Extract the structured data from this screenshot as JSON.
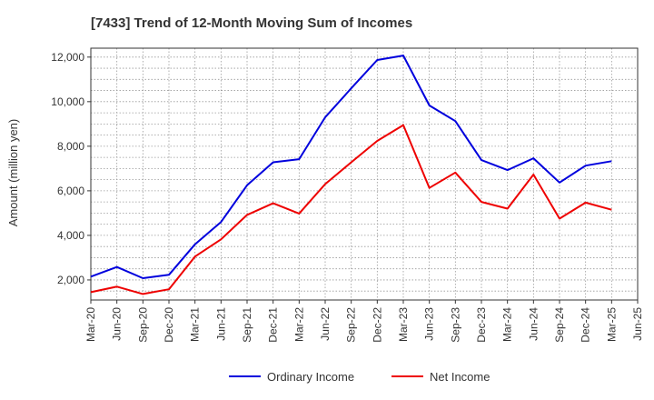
{
  "chart_data": {
    "type": "line",
    "title": "[7433]  Trend of 12-Month Moving Sum of Incomes",
    "xlabel": "",
    "ylabel": "Amount (million yen)",
    "ylim": [
      1100,
      12400
    ],
    "yticks": [
      2000,
      4000,
      6000,
      8000,
      10000,
      12000
    ],
    "ytick_labels": [
      "2,000",
      "4,000",
      "6,000",
      "8,000",
      "10,000",
      "12,000"
    ],
    "categories": [
      "Mar-20",
      "Jun-20",
      "Sep-20",
      "Dec-20",
      "Mar-21",
      "Jun-21",
      "Sep-21",
      "Dec-21",
      "Mar-22",
      "Jun-22",
      "Sep-22",
      "Dec-22",
      "Mar-23",
      "Jun-23",
      "Sep-23",
      "Dec-23",
      "Mar-24",
      "Jun-24",
      "Sep-24",
      "Dec-24",
      "Mar-25",
      "Jun-25"
    ],
    "grid": true,
    "legend_position": "bottom-center",
    "series": [
      {
        "name": "Ordinary Income",
        "color": "#0000dd",
        "values": [
          2150,
          2580,
          2080,
          2230,
          3600,
          4600,
          6250,
          7280,
          7420,
          9300,
          10600,
          11870,
          12070,
          9830,
          9130,
          7380,
          6930,
          7460,
          6370,
          7130,
          7330,
          null
        ]
      },
      {
        "name": "Net Income",
        "color": "#ee0000",
        "values": [
          1450,
          1700,
          1370,
          1580,
          3050,
          3820,
          4920,
          5440,
          4980,
          6300,
          7280,
          8240,
          8950,
          6130,
          6820,
          5500,
          5200,
          6730,
          4750,
          5470,
          5150,
          null
        ]
      }
    ]
  }
}
